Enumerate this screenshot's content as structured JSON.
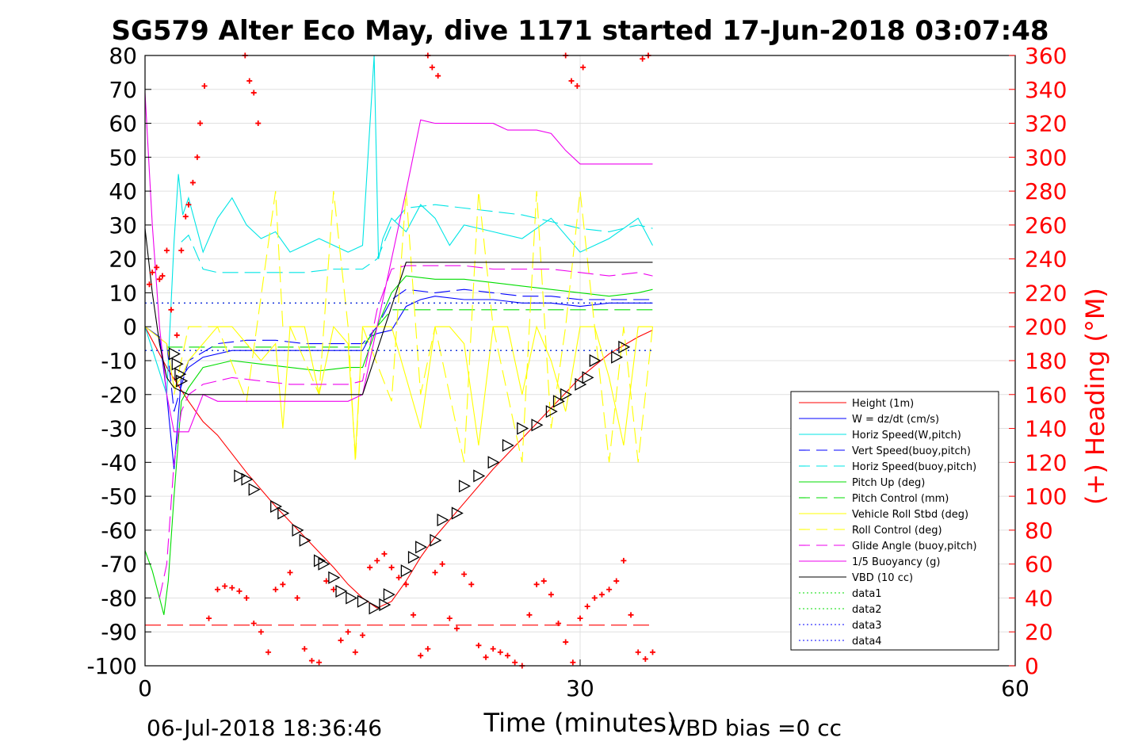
{
  "chart_data": {
    "type": "line",
    "title": "SG579 Alter Eco May, dive 1171 started 17-Jun-2018 03:07:48",
    "xlabel": "Time (minutes)",
    "ylabel": "",
    "y2label": "(+) Heading (°M)",
    "xlim": [
      0,
      60
    ],
    "ylim": [
      -100,
      80
    ],
    "y2lim": [
      0,
      360
    ],
    "xticks": [
      "0",
      "30",
      "60"
    ],
    "yticks": [
      "80",
      "70",
      "60",
      "50",
      "40",
      "30",
      "20",
      "10",
      "0",
      "-10",
      "-20",
      "-30",
      "-40",
      "-50",
      "-60",
      "-70",
      "-80",
      "-90",
      "-100"
    ],
    "y2ticks": [
      "360",
      "340",
      "320",
      "300",
      "280",
      "260",
      "240",
      "220",
      "200",
      "180",
      "160",
      "140",
      "120",
      "100",
      "80",
      "60",
      "40",
      "20",
      "0"
    ],
    "grid": true,
    "legend_position": "lower-right",
    "footer_left": "06-Jul-2018 18:36:46",
    "footer_right": "VBD bias =0 cc",
    "colors": {
      "axis": "#000000",
      "right_axis": "#ff0000",
      "grid": "#e0e0e0"
    },
    "legend": [
      {
        "label": "Height (1m)",
        "color": "#ff0000",
        "dash": "solid"
      },
      {
        "label": "W = dz/dt (cm/s)",
        "color": "#0000ff",
        "dash": "solid"
      },
      {
        "label": "Horiz Speed(W,pitch)",
        "color": "#00e5e5",
        "dash": "solid"
      },
      {
        "label": "Vert Speed(buoy,pitch)",
        "color": "#0000ff",
        "dash": "dashed"
      },
      {
        "label": "Horiz Speed(buoy,pitch)",
        "color": "#00e5e5",
        "dash": "dashed"
      },
      {
        "label": "Pitch Up (deg)",
        "color": "#00dd00",
        "dash": "solid"
      },
      {
        "label": "Pitch Control (mm)",
        "color": "#00dd00",
        "dash": "dashed"
      },
      {
        "label": "Vehicle Roll Stbd (deg)",
        "color": "#ffff00",
        "dash": "solid"
      },
      {
        "label": "Roll Control (deg)",
        "color": "#ffff00",
        "dash": "dashed"
      },
      {
        "label": "Glide Angle (buoy,pitch)",
        "color": "#ee00ee",
        "dash": "dashed"
      },
      {
        "label": "1/5 Buoyancy (g)",
        "color": "#ee00ee",
        "dash": "solid"
      },
      {
        "label": "VBD (10 cc)",
        "color": "#000000",
        "dash": "solid"
      },
      {
        "label": "data1",
        "color": "#00dd00",
        "dash": "dotted"
      },
      {
        "label": "data2",
        "color": "#00dd00",
        "dash": "dotted"
      },
      {
        "label": "data3",
        "color": "#0000ff",
        "dash": "dotted"
      },
      {
        "label": "data4",
        "color": "#0000ff",
        "dash": "dotted"
      }
    ],
    "series": [
      {
        "name": "Height (1m)",
        "color": "#ff0000",
        "dash": "solid",
        "x": [
          0,
          1.5,
          3,
          4,
          5,
          7,
          9,
          11,
          13,
          14,
          15,
          16,
          17,
          18,
          19,
          20,
          22,
          24,
          26,
          28,
          30,
          32,
          34,
          35
        ],
        "y": [
          0,
          -12,
          -22,
          -28,
          -32,
          -43,
          -53,
          -62,
          -71,
          -76,
          -80,
          -83,
          -81,
          -75,
          -68,
          -62,
          -52,
          -42,
          -33,
          -24,
          -15,
          -8,
          -3,
          -1
        ]
      },
      {
        "name": "W = dz/dt (cm/s)",
        "color": "#0000ff",
        "dash": "solid",
        "x": [
          0,
          1,
          1.5,
          2,
          2.5,
          3,
          4,
          6,
          8,
          10,
          12,
          14,
          15,
          15.5,
          16,
          17,
          18,
          19,
          20,
          22,
          24,
          26,
          28,
          30,
          32,
          34,
          35
        ],
        "y": [
          0,
          -3,
          -20,
          -42,
          -15,
          -12,
          -9,
          -7,
          -7,
          -7,
          -7,
          -7,
          -7,
          -3,
          -2,
          -1,
          6,
          8,
          9,
          8,
          8,
          7,
          7,
          6,
          7,
          7,
          7
        ]
      },
      {
        "name": "Horiz Speed(W,pitch)",
        "color": "#00e5e5",
        "dash": "solid",
        "x": [
          0,
          1.5,
          2,
          2.3,
          2.6,
          3,
          4,
          5,
          6,
          7,
          8,
          9,
          10,
          12,
          14,
          15,
          15.8,
          16.1,
          16.4,
          17,
          18,
          19,
          20,
          21,
          22,
          24,
          26,
          28,
          30,
          32,
          34,
          35
        ],
        "y": [
          0,
          -20,
          25,
          45,
          33,
          38,
          22,
          32,
          38,
          30,
          26,
          28,
          22,
          26,
          22,
          24,
          80,
          20,
          26,
          32,
          28,
          36,
          32,
          24,
          30,
          28,
          26,
          32,
          22,
          26,
          32,
          24
        ]
      },
      {
        "name": "Vert Speed(buoy,pitch)",
        "color": "#0000ff",
        "dash": "dashed",
        "x": [
          1.5,
          2,
          3,
          5,
          7,
          9,
          11,
          13,
          15,
          16,
          17,
          18,
          20,
          22,
          24,
          26,
          28,
          30,
          32,
          34,
          35
        ],
        "y": [
          -5,
          -25,
          -10,
          -5,
          -4,
          -4,
          -5,
          -5,
          -5,
          0,
          8,
          11,
          10,
          11,
          10,
          9,
          9,
          8,
          8,
          8,
          8
        ]
      },
      {
        "name": "Horiz Speed(buoy,pitch)",
        "color": "#00e5e5",
        "dash": "dashed",
        "x": [
          2.5,
          3,
          4,
          5,
          7,
          9,
          11,
          13,
          15,
          16,
          17,
          18,
          20,
          22,
          24,
          26,
          28,
          30,
          32,
          34,
          35
        ],
        "y": [
          25,
          27,
          17,
          16,
          16,
          16,
          16,
          17,
          17,
          20,
          30,
          35,
          36,
          35,
          34,
          33,
          31,
          29,
          28,
          30,
          29
        ]
      },
      {
        "name": "Pitch Up (deg)",
        "color": "#00dd00",
        "dash": "solid",
        "x": [
          0,
          0.5,
          1,
          1.3,
          1.6,
          2,
          2.5,
          3,
          4,
          6,
          8,
          10,
          12,
          14,
          15,
          16,
          17,
          18,
          20,
          22,
          24,
          26,
          28,
          30,
          32,
          34,
          35
        ],
        "y": [
          -66,
          -72,
          -80,
          -85,
          -75,
          -50,
          -22,
          -18,
          -12,
          -10,
          -11,
          -12,
          -13,
          -12,
          -12,
          0,
          10,
          15,
          14,
          14,
          13,
          12,
          11,
          10,
          9,
          10,
          11
        ]
      },
      {
        "name": "Pitch Control (mm)",
        "color": "#00dd00",
        "dash": "dashed",
        "x": [
          1.5,
          2.5,
          3,
          15,
          16,
          17,
          18,
          34,
          35
        ],
        "y": [
          -6,
          -6,
          -6,
          -6,
          0,
          5,
          5,
          5,
          5
        ]
      },
      {
        "name": "Vehicle Roll Stbd (deg)",
        "color": "#ffff00",
        "dash": "solid",
        "x": [
          0,
          1.5,
          2,
          2.5,
          3,
          4,
          5,
          6,
          7,
          8,
          9,
          9.5,
          10,
          11,
          12,
          13,
          14,
          14.5,
          15,
          16,
          17,
          18,
          19,
          20,
          21,
          22,
          23,
          24,
          25,
          26,
          27,
          28,
          29,
          30,
          31,
          32,
          33,
          34,
          35
        ],
        "y": [
          0,
          -5,
          -18,
          -15,
          -10,
          -5,
          0,
          0,
          -5,
          -10,
          -5,
          -30,
          0,
          0,
          -20,
          0,
          -5,
          -38,
          0,
          0,
          0,
          -15,
          -30,
          0,
          0,
          -5,
          -35,
          0,
          0,
          -20,
          0,
          -10,
          -25,
          0,
          0,
          -15,
          -35,
          0,
          0
        ]
      },
      {
        "name": "Roll Control (deg)",
        "color": "#ffff00",
        "dash": "dashed",
        "x": [
          2,
          3,
          5,
          7,
          9,
          9.5,
          10,
          12,
          13,
          14,
          14.5,
          15,
          17,
          18,
          19,
          20,
          22,
          23,
          24,
          26,
          27,
          28,
          29,
          30,
          31,
          32,
          33,
          34,
          35
        ],
        "y": [
          -20,
          0,
          0,
          -22,
          40,
          0,
          0,
          -20,
          40,
          0,
          -40,
          0,
          -22,
          40,
          -20,
          0,
          -40,
          40,
          0,
          -40,
          40,
          -30,
          0,
          40,
          0,
          -40,
          0,
          -40,
          0
        ]
      },
      {
        "name": "Glide Angle (buoy,pitch)",
        "color": "#ee00ee",
        "dash": "dashed",
        "x": [
          1,
          1.5,
          2,
          2.5,
          3,
          4,
          6,
          8,
          10,
          12,
          14,
          15,
          16,
          17,
          18,
          20,
          22,
          24,
          26,
          28,
          30,
          32,
          34,
          35
        ],
        "y": [
          -80,
          -70,
          -40,
          -25,
          -20,
          -17,
          -15,
          -16,
          -17,
          -17,
          -17,
          -16,
          5,
          17,
          18,
          18,
          18,
          17,
          17,
          17,
          16,
          15,
          16,
          15
        ]
      },
      {
        "name": "1/5 Buoyancy (g)",
        "color": "#ee00ee",
        "dash": "solid",
        "x": [
          0,
          0.5,
          1,
          1.5,
          2,
          2.5,
          3,
          4,
          5,
          6,
          8,
          10,
          12,
          14,
          15,
          16,
          17,
          18,
          19,
          20,
          22,
          24,
          25,
          26,
          27,
          28,
          29,
          30,
          31,
          32,
          34,
          35
        ],
        "y": [
          69,
          30,
          0,
          -20,
          -31,
          -31,
          -31,
          -20,
          -22,
          -22,
          -22,
          -22,
          -22,
          -22,
          -20,
          0,
          20,
          40,
          61,
          60,
          60,
          60,
          58,
          58,
          58,
          57,
          52,
          48,
          48,
          48,
          48,
          48
        ]
      },
      {
        "name": "VBD (10 cc)",
        "color": "#000000",
        "dash": "solid",
        "x": [
          0,
          0.5,
          1,
          1.5,
          2,
          2.5,
          3,
          5,
          10,
          15,
          18,
          19,
          20,
          25,
          30,
          35
        ],
        "y": [
          29,
          10,
          -5,
          -15,
          -18,
          -19,
          -20,
          -20,
          -20,
          -20,
          19,
          19,
          19,
          19,
          19,
          19
        ]
      },
      {
        "name": "data1",
        "color": "#00dd00",
        "dash": "dotted",
        "x": [
          0,
          35
        ],
        "y": [
          7,
          7
        ]
      },
      {
        "name": "data2",
        "color": "#00dd00",
        "dash": "dotted",
        "x": [
          0,
          35
        ],
        "y": [
          -7,
          -7
        ]
      },
      {
        "name": "data3",
        "color": "#0000ff",
        "dash": "dotted",
        "x": [
          0,
          35
        ],
        "y": [
          7,
          7
        ]
      },
      {
        "name": "data4",
        "color": "#0000ff",
        "dash": "dotted",
        "x": [
          0,
          35
        ],
        "y": [
          -7,
          -7
        ]
      },
      {
        "name": "heading reference",
        "color": "#ff0000",
        "dash": "dashed",
        "axis": "right",
        "x": [
          0,
          35
        ],
        "y": [
          24,
          24
        ]
      }
    ],
    "heading_points": {
      "color": "#ff0000",
      "axis": "right",
      "x": [
        0.3,
        0.5,
        0.8,
        1.0,
        1.2,
        1.5,
        1.8,
        2.2,
        2.5,
        2.8,
        3.0,
        3.3,
        3.6,
        3.8,
        4.1,
        4.4,
        5.0,
        5.5,
        6.0,
        6.5,
        7.0,
        7.5,
        8.0,
        8.5,
        9.0,
        9.5,
        10.0,
        10.5,
        11.0,
        11.5,
        12.0,
        12.5,
        13.0,
        13.5,
        14.0,
        14.5,
        15.0,
        15.5,
        16.0,
        16.5,
        17.0,
        17.5,
        18.0,
        18.5,
        19.0,
        19.5,
        20.0,
        20.5,
        21.0,
        21.5,
        22.0,
        22.5,
        23.0,
        23.5,
        24.0,
        24.5,
        25.0,
        25.5,
        26.0,
        26.5,
        27.0,
        27.5,
        28.0,
        28.5,
        29.0,
        29.5,
        30.0,
        30.5,
        31.0,
        31.5,
        32.0,
        32.5,
        33.0,
        33.5,
        34.0,
        34.5,
        35.0,
        6.9,
        7.2,
        7.5,
        7.8,
        19.5,
        19.8,
        20.2,
        29.0,
        29.4,
        29.8,
        30.2,
        34.3,
        34.7
      ],
      "y": [
        225,
        232,
        235,
        228,
        230,
        245,
        210,
        195,
        245,
        265,
        272,
        285,
        300,
        320,
        342,
        28,
        45,
        47,
        46,
        44,
        40,
        25,
        20,
        8,
        45,
        48,
        55,
        40,
        10,
        3,
        2,
        50,
        45,
        15,
        20,
        8,
        18,
        58,
        62,
        66,
        58,
        52,
        48,
        30,
        6,
        10,
        55,
        60,
        28,
        22,
        54,
        48,
        12,
        5,
        10,
        8,
        6,
        2,
        0,
        30,
        48,
        50,
        42,
        25,
        14,
        2,
        28,
        35,
        40,
        42,
        45,
        50,
        62,
        30,
        8,
        4,
        8,
        360,
        345,
        338,
        320,
        360,
        353,
        348,
        362,
        345,
        342,
        353,
        358,
        360
      ]
    },
    "triangle_markers": {
      "color": "#000000",
      "x": [
        2.0,
        2.2,
        2.4,
        2.5,
        6.5,
        7.0,
        7.5,
        9.0,
        9.5,
        10.5,
        11.0,
        12.0,
        12.3,
        13.0,
        13.5,
        14.2,
        15.0,
        15.8,
        16.5,
        16.8,
        18.0,
        18.5,
        19.0,
        20.0,
        20.5,
        21.5,
        22.0,
        23.0,
        24.0,
        25.0,
        26.0,
        27.0,
        28.0,
        28.5,
        29.0,
        30.0,
        30.5,
        31.0,
        32.5,
        33.0
      ],
      "y": [
        -8,
        -11,
        -14,
        -16,
        -44,
        -45,
        -48,
        -53,
        -55,
        -60,
        -63,
        -69,
        -70,
        -74,
        -78,
        -80,
        -81,
        -83,
        -82,
        -79,
        -72,
        -68,
        -65,
        -63,
        -57,
        -55,
        -47,
        -44,
        -40,
        -35,
        -30,
        -29,
        -25,
        -22,
        -20,
        -17,
        -15,
        -10,
        -9,
        -6
      ]
    }
  }
}
